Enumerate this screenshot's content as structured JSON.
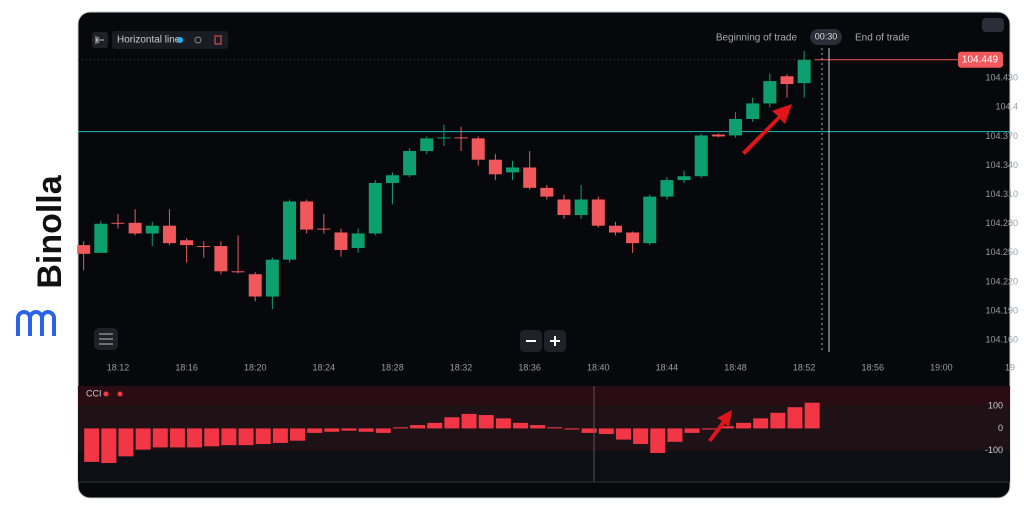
{
  "brand": {
    "name": "Binolla"
  },
  "toolbar": {
    "tool": "Horizontal line",
    "beginning": "Beginning of trade",
    "timer": "00:30",
    "end": "End of trade"
  },
  "chart_data": [
    {
      "type": "candlestick",
      "up_color": "#0e9f6e",
      "down_color": "#f0585c",
      "line_color": "#1fa5a5",
      "x": [
        10,
        11,
        12,
        13,
        14,
        15,
        16,
        17,
        18,
        19,
        20,
        21,
        22,
        23,
        24,
        25,
        26,
        27,
        28,
        29,
        30,
        31,
        32,
        33,
        34,
        35,
        36,
        37,
        38,
        39,
        40,
        41,
        42,
        43,
        44,
        45,
        46,
        47,
        48,
        49,
        50,
        51,
        52
      ],
      "open": [
        104.258,
        104.25,
        104.281,
        104.281,
        104.27,
        104.278,
        104.263,
        104.257,
        104.257,
        104.231,
        104.228,
        104.205,
        104.243,
        104.303,
        104.275,
        104.271,
        104.255,
        104.27,
        104.322,
        104.33,
        104.355,
        104.368,
        104.369,
        104.368,
        104.346,
        104.333,
        104.338,
        104.317,
        104.305,
        104.289,
        104.305,
        104.278,
        104.271,
        104.26,
        104.308,
        104.325,
        104.329,
        104.372,
        104.371,
        104.388,
        104.404,
        104.432,
        104.425
      ],
      "high": [
        104.262,
        104.283,
        104.29,
        104.295,
        104.282,
        104.295,
        104.265,
        104.262,
        104.262,
        104.268,
        104.23,
        104.245,
        104.305,
        104.305,
        104.29,
        104.275,
        104.275,
        104.325,
        104.333,
        104.358,
        104.37,
        104.382,
        104.38,
        104.37,
        104.352,
        104.345,
        104.355,
        104.32,
        104.31,
        104.32,
        104.308,
        104.282,
        104.272,
        104.31,
        104.328,
        104.335,
        104.373,
        104.373,
        104.395,
        104.41,
        104.435,
        104.434,
        104.458
      ],
      "low": [
        104.232,
        104.25,
        104.275,
        104.268,
        104.257,
        104.258,
        104.24,
        104.245,
        104.228,
        104.229,
        104.2,
        104.192,
        104.24,
        104.27,
        104.27,
        104.246,
        104.25,
        104.268,
        104.3,
        104.328,
        104.352,
        104.36,
        104.355,
        104.34,
        104.325,
        104.325,
        104.315,
        104.305,
        104.285,
        104.285,
        104.276,
        104.268,
        104.25,
        104.258,
        104.305,
        104.322,
        104.327,
        104.369,
        104.369,
        104.385,
        104.4,
        104.41,
        104.41
      ],
      "close": [
        104.249,
        104.28,
        104.28,
        104.27,
        104.278,
        104.26,
        104.258,
        104.256,
        104.231,
        104.23,
        104.205,
        104.243,
        104.303,
        104.274,
        104.274,
        104.253,
        104.27,
        104.322,
        104.33,
        104.355,
        104.368,
        104.369,
        104.368,
        104.346,
        104.331,
        104.338,
        104.317,
        104.308,
        104.289,
        104.305,
        104.278,
        104.271,
        104.26,
        104.308,
        104.325,
        104.329,
        104.371,
        104.37,
        104.388,
        104.404,
        104.427,
        104.424,
        104.449
      ],
      "last_price": 104.449,
      "horizontal_line": 104.375,
      "xlim": [
        9.67,
        64
      ],
      "xticks": [
        {
          "value": 12,
          "label": "18:12"
        },
        {
          "value": 16,
          "label": "18:16"
        },
        {
          "value": 20,
          "label": "18:20"
        },
        {
          "value": 24,
          "label": "18:24"
        },
        {
          "value": 28,
          "label": "18:28"
        },
        {
          "value": 32,
          "label": "18:32"
        },
        {
          "value": 36,
          "label": "18:36"
        },
        {
          "value": 40,
          "label": "18:40"
        },
        {
          "value": 44,
          "label": "18:44"
        },
        {
          "value": 48,
          "label": "18:48"
        },
        {
          "value": 52,
          "label": "18:52"
        },
        {
          "value": 56,
          "label": "18:56"
        },
        {
          "value": 60,
          "label": "19:00"
        },
        {
          "value": 64,
          "label": "19"
        }
      ],
      "ylim": [
        104.12,
        104.49
      ],
      "yticks": [
        {
          "value": 104.43,
          "label": "104.430"
        },
        104.4,
        {
          "value": 104.37,
          "label": "104.370"
        },
        {
          "value": 104.34,
          "label": "104.340"
        },
        {
          "value": 104.31,
          "label": "104.310"
        },
        {
          "value": 104.28,
          "label": "104.280"
        },
        {
          "value": 104.25,
          "label": "104.250"
        },
        {
          "value": 104.22,
          "label": "104.220"
        },
        {
          "value": 104.19,
          "label": "104.190"
        },
        {
          "value": 104.16,
          "label": "104.160"
        }
      ],
      "grid": false
    },
    {
      "type": "bar",
      "title": "CCI",
      "color": "#f23645",
      "x": [
        10,
        11,
        12,
        13,
        14,
        15,
        16,
        17,
        18,
        19,
        20,
        21,
        22,
        23,
        24,
        25,
        26,
        27,
        28,
        29,
        30,
        31,
        32,
        33,
        34,
        35,
        36,
        37,
        38,
        39,
        40,
        41,
        42,
        43,
        44,
        45,
        46,
        47,
        48,
        49,
        50,
        51,
        52
      ],
      "values": [
        -150,
        -155,
        -125,
        -95,
        -85,
        -85,
        -85,
        -80,
        -75,
        -75,
        -70,
        -65,
        -55,
        -20,
        -15,
        -10,
        -15,
        -20,
        5,
        15,
        25,
        50,
        65,
        60,
        45,
        25,
        15,
        5,
        -5,
        -20,
        -25,
        -50,
        -70,
        -110,
        -60,
        -20,
        -5,
        10,
        25,
        45,
        70,
        95,
        115
      ],
      "ylim": [
        -240,
        190
      ],
      "yticks": [
        100,
        0,
        -100
      ],
      "grid": false
    }
  ]
}
